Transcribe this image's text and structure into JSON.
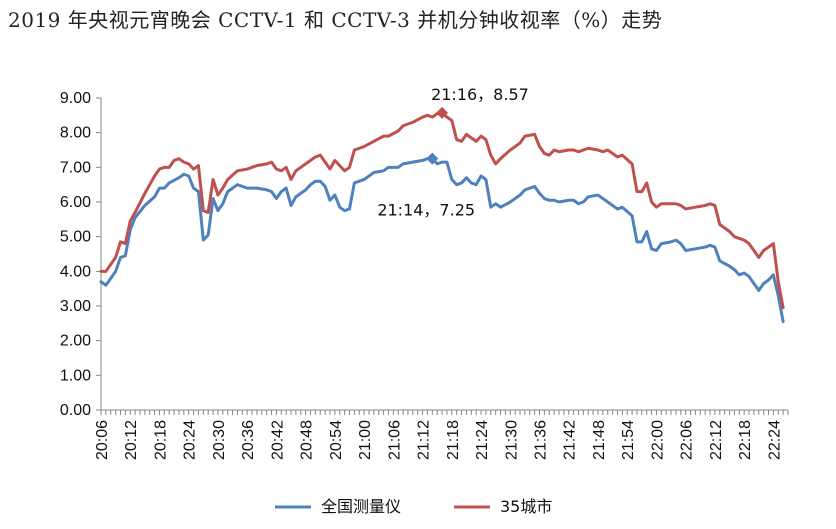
{
  "chart_data": {
    "type": "line",
    "title": "2019 年央视元宵晚会 CCTV-1 和 CCTV-3 并机分钟收视率（%）走势",
    "xlabel": "",
    "ylabel": "",
    "ylim": [
      0,
      9
    ],
    "yticks": [
      "0.00",
      "1.00",
      "2.00",
      "3.00",
      "4.00",
      "5.00",
      "6.00",
      "7.00",
      "8.00",
      "9.00"
    ],
    "x_start": "20:06",
    "x_end": "22:27",
    "x_tick_labels": [
      "20:06",
      "20:12",
      "20:18",
      "20:24",
      "20:30",
      "20:36",
      "20:42",
      "20:48",
      "20:54",
      "21:00",
      "21:06",
      "21:12",
      "21:18",
      "21:24",
      "21:30",
      "21:36",
      "21:42",
      "21:48",
      "21:54",
      "22:00",
      "22:06",
      "22:12",
      "22:18",
      "22:24"
    ],
    "grid": false,
    "legend": "bottom",
    "series": [
      {
        "name": "全国测量仪",
        "color": "#4f81bd",
        "points": [
          [
            "20:06",
            3.7
          ],
          [
            "20:07",
            3.6
          ],
          [
            "20:09",
            4.0
          ],
          [
            "20:10",
            4.4
          ],
          [
            "20:11",
            4.45
          ],
          [
            "20:12",
            5.2
          ],
          [
            "20:13",
            5.55
          ],
          [
            "20:15",
            5.9
          ],
          [
            "20:17",
            6.15
          ],
          [
            "20:18",
            6.4
          ],
          [
            "20:19",
            6.4
          ],
          [
            "20:20",
            6.55
          ],
          [
            "20:22",
            6.7
          ],
          [
            "20:23",
            6.8
          ],
          [
            "20:24",
            6.75
          ],
          [
            "20:25",
            6.4
          ],
          [
            "20:26",
            6.3
          ],
          [
            "20:27",
            4.9
          ],
          [
            "20:28",
            5.05
          ],
          [
            "20:29",
            6.1
          ],
          [
            "20:30",
            5.75
          ],
          [
            "20:31",
            5.95
          ],
          [
            "20:32",
            6.3
          ],
          [
            "20:34",
            6.5
          ],
          [
            "20:36",
            6.4
          ],
          [
            "20:37",
            6.4
          ],
          [
            "20:38",
            6.4
          ],
          [
            "20:40",
            6.35
          ],
          [
            "20:41",
            6.3
          ],
          [
            "20:42",
            6.1
          ],
          [
            "20:43",
            6.3
          ],
          [
            "20:44",
            6.4
          ],
          [
            "20:45",
            5.9
          ],
          [
            "20:46",
            6.15
          ],
          [
            "20:48",
            6.35
          ],
          [
            "20:49",
            6.5
          ],
          [
            "20:50",
            6.6
          ],
          [
            "20:51",
            6.6
          ],
          [
            "20:52",
            6.45
          ],
          [
            "20:53",
            6.05
          ],
          [
            "20:54",
            6.2
          ],
          [
            "20:55",
            5.85
          ],
          [
            "20:56",
            5.75
          ],
          [
            "20:57",
            5.8
          ],
          [
            "20:58",
            6.55
          ],
          [
            "21:00",
            6.65
          ],
          [
            "21:02",
            6.85
          ],
          [
            "21:04",
            6.9
          ],
          [
            "21:05",
            7.0
          ],
          [
            "21:07",
            7.0
          ],
          [
            "21:08",
            7.1
          ],
          [
            "21:10",
            7.15
          ],
          [
            "21:12",
            7.2
          ],
          [
            "21:13",
            7.25
          ],
          [
            "21:14",
            7.25
          ],
          [
            "21:15",
            7.1
          ],
          [
            "21:16",
            7.15
          ],
          [
            "21:17",
            7.15
          ],
          [
            "21:18",
            6.65
          ],
          [
            "21:19",
            6.5
          ],
          [
            "21:20",
            6.55
          ],
          [
            "21:21",
            6.7
          ],
          [
            "21:22",
            6.55
          ],
          [
            "21:23",
            6.5
          ],
          [
            "21:24",
            6.75
          ],
          [
            "21:25",
            6.65
          ],
          [
            "21:26",
            5.85
          ],
          [
            "21:27",
            5.95
          ],
          [
            "21:28",
            5.85
          ],
          [
            "21:30",
            6.0
          ],
          [
            "21:32",
            6.2
          ],
          [
            "21:33",
            6.35
          ],
          [
            "21:35",
            6.45
          ],
          [
            "21:36",
            6.25
          ],
          [
            "21:37",
            6.1
          ],
          [
            "21:38",
            6.05
          ],
          [
            "21:39",
            6.05
          ],
          [
            "21:40",
            6.0
          ],
          [
            "21:42",
            6.05
          ],
          [
            "21:43",
            6.05
          ],
          [
            "21:44",
            5.95
          ],
          [
            "21:45",
            6.0
          ],
          [
            "21:46",
            6.15
          ],
          [
            "21:48",
            6.2
          ],
          [
            "21:49",
            6.1
          ],
          [
            "21:50",
            6.0
          ],
          [
            "21:51",
            5.9
          ],
          [
            "21:52",
            5.8
          ],
          [
            "21:53",
            5.85
          ],
          [
            "21:55",
            5.6
          ],
          [
            "21:56",
            4.85
          ],
          [
            "21:57",
            4.85
          ],
          [
            "21:58",
            5.15
          ],
          [
            "21:59",
            4.65
          ],
          [
            "22:00",
            4.6
          ],
          [
            "22:01",
            4.8
          ],
          [
            "22:03",
            4.85
          ],
          [
            "22:04",
            4.9
          ],
          [
            "22:05",
            4.8
          ],
          [
            "22:06",
            4.6
          ],
          [
            "22:08",
            4.65
          ],
          [
            "22:10",
            4.7
          ],
          [
            "22:11",
            4.75
          ],
          [
            "22:12",
            4.7
          ],
          [
            "22:13",
            4.3
          ],
          [
            "22:15",
            4.15
          ],
          [
            "22:16",
            4.05
          ],
          [
            "22:17",
            3.9
          ],
          [
            "22:18",
            3.95
          ],
          [
            "22:19",
            3.85
          ],
          [
            "22:20",
            3.65
          ],
          [
            "22:21",
            3.45
          ],
          [
            "22:22",
            3.65
          ],
          [
            "22:23",
            3.75
          ],
          [
            "22:24",
            3.9
          ],
          [
            "22:25",
            3.3
          ],
          [
            "22:26",
            2.55
          ]
        ]
      },
      {
        "name": "35城市",
        "color": "#c0504d",
        "points": [
          [
            "20:06",
            4.0
          ],
          [
            "20:07",
            4.0
          ],
          [
            "20:09",
            4.4
          ],
          [
            "20:10",
            4.85
          ],
          [
            "20:11",
            4.8
          ],
          [
            "20:12",
            5.45
          ],
          [
            "20:13",
            5.7
          ],
          [
            "20:15",
            6.25
          ],
          [
            "20:17",
            6.75
          ],
          [
            "20:18",
            6.95
          ],
          [
            "20:19",
            7.0
          ],
          [
            "20:20",
            7.0
          ],
          [
            "20:21",
            7.2
          ],
          [
            "20:22",
            7.25
          ],
          [
            "20:23",
            7.15
          ],
          [
            "20:24",
            7.1
          ],
          [
            "20:25",
            6.95
          ],
          [
            "20:26",
            7.05
          ],
          [
            "20:27",
            5.75
          ],
          [
            "20:28",
            5.7
          ],
          [
            "20:29",
            6.65
          ],
          [
            "20:30",
            6.2
          ],
          [
            "20:31",
            6.4
          ],
          [
            "20:32",
            6.65
          ],
          [
            "20:34",
            6.9
          ],
          [
            "20:36",
            6.95
          ],
          [
            "20:37",
            7.0
          ],
          [
            "20:38",
            7.05
          ],
          [
            "20:40",
            7.1
          ],
          [
            "20:41",
            7.15
          ],
          [
            "20:42",
            6.95
          ],
          [
            "20:43",
            6.9
          ],
          [
            "20:44",
            7.0
          ],
          [
            "20:45",
            6.65
          ],
          [
            "20:46",
            6.9
          ],
          [
            "20:48",
            7.1
          ],
          [
            "20:49",
            7.2
          ],
          [
            "20:50",
            7.3
          ],
          [
            "20:51",
            7.35
          ],
          [
            "20:52",
            7.15
          ],
          [
            "20:53",
            6.95
          ],
          [
            "20:54",
            7.2
          ],
          [
            "20:55",
            7.05
          ],
          [
            "20:56",
            6.9
          ],
          [
            "20:57",
            7.0
          ],
          [
            "20:58",
            7.5
          ],
          [
            "21:00",
            7.6
          ],
          [
            "21:02",
            7.75
          ],
          [
            "21:04",
            7.9
          ],
          [
            "21:05",
            7.9
          ],
          [
            "21:07",
            8.05
          ],
          [
            "21:08",
            8.2
          ],
          [
            "21:10",
            8.3
          ],
          [
            "21:12",
            8.45
          ],
          [
            "21:13",
            8.5
          ],
          [
            "21:14",
            8.45
          ],
          [
            "21:15",
            8.55
          ],
          [
            "21:16",
            8.57
          ],
          [
            "21:17",
            8.45
          ],
          [
            "21:18",
            8.35
          ],
          [
            "21:19",
            7.8
          ],
          [
            "21:20",
            7.75
          ],
          [
            "21:21",
            7.95
          ],
          [
            "21:22",
            7.85
          ],
          [
            "21:23",
            7.75
          ],
          [
            "21:24",
            7.9
          ],
          [
            "21:25",
            7.8
          ],
          [
            "21:26",
            7.35
          ],
          [
            "21:27",
            7.1
          ],
          [
            "21:28",
            7.25
          ],
          [
            "21:30",
            7.5
          ],
          [
            "21:32",
            7.7
          ],
          [
            "21:33",
            7.9
          ],
          [
            "21:35",
            7.95
          ],
          [
            "21:36",
            7.6
          ],
          [
            "21:37",
            7.4
          ],
          [
            "21:38",
            7.35
          ],
          [
            "21:39",
            7.5
          ],
          [
            "21:40",
            7.45
          ],
          [
            "21:42",
            7.5
          ],
          [
            "21:43",
            7.5
          ],
          [
            "21:44",
            7.45
          ],
          [
            "21:45",
            7.5
          ],
          [
            "21:46",
            7.55
          ],
          [
            "21:48",
            7.5
          ],
          [
            "21:49",
            7.45
          ],
          [
            "21:50",
            7.5
          ],
          [
            "21:51",
            7.4
          ],
          [
            "21:52",
            7.3
          ],
          [
            "21:53",
            7.35
          ],
          [
            "21:55",
            7.1
          ],
          [
            "21:56",
            6.3
          ],
          [
            "21:57",
            6.3
          ],
          [
            "21:58",
            6.55
          ],
          [
            "21:59",
            6.0
          ],
          [
            "22:00",
            5.85
          ],
          [
            "22:01",
            5.95
          ],
          [
            "22:03",
            5.95
          ],
          [
            "22:04",
            5.95
          ],
          [
            "22:05",
            5.9
          ],
          [
            "22:06",
            5.8
          ],
          [
            "22:08",
            5.85
          ],
          [
            "22:10",
            5.9
          ],
          [
            "22:11",
            5.95
          ],
          [
            "22:12",
            5.9
          ],
          [
            "22:13",
            5.35
          ],
          [
            "22:15",
            5.15
          ],
          [
            "22:16",
            5.0
          ],
          [
            "22:17",
            4.95
          ],
          [
            "22:18",
            4.9
          ],
          [
            "22:19",
            4.8
          ],
          [
            "22:20",
            4.6
          ],
          [
            "22:21",
            4.4
          ],
          [
            "22:22",
            4.6
          ],
          [
            "22:23",
            4.7
          ],
          [
            "22:24",
            4.8
          ],
          [
            "22:25",
            3.7
          ],
          [
            "22:26",
            2.95
          ]
        ]
      }
    ],
    "annotations": [
      {
        "text": "21:16，8.57",
        "series": "35城市",
        "x": "21:16",
        "y": 8.57
      },
      {
        "text": "21:14，7.25",
        "series": "全国测量仪",
        "x": "21:14",
        "y": 7.25
      }
    ]
  }
}
